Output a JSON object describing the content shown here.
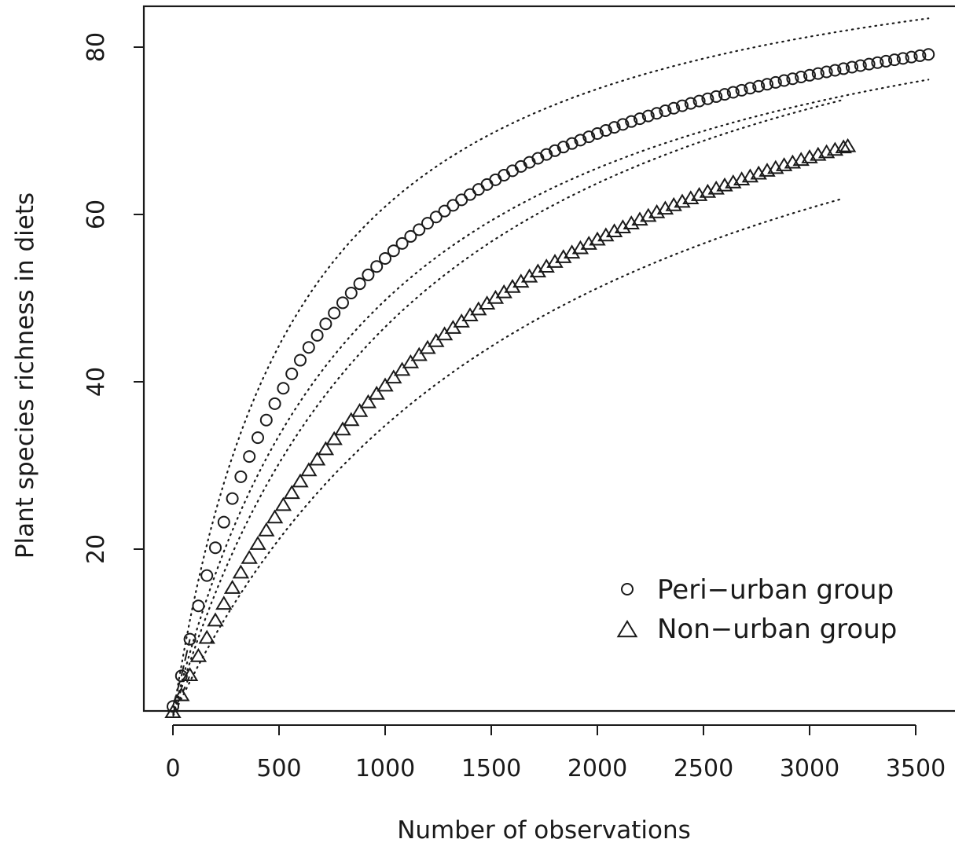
{
  "chart_data": {
    "type": "scatter",
    "title": "",
    "xlabel": "Number of observations",
    "ylabel": "Plant species richness in diets",
    "xlim": [
      -140,
      3700
    ],
    "ylim": [
      0,
      85
    ],
    "x_ticks": [
      0,
      500,
      1000,
      1500,
      2000,
      2500,
      3000,
      3500
    ],
    "x_tick_labels": [
      "0",
      "500",
      "1000",
      "1500",
      "2000",
      "2500",
      "3000",
      "3500"
    ],
    "y_ticks": [
      20,
      40,
      60,
      80
    ],
    "y_tick_labels": [
      "20",
      "40",
      "60",
      "80"
    ],
    "grid": false,
    "legend_position": "bottom-right",
    "series": [
      {
        "name": "Peri−urban group",
        "marker": "circle",
        "model": {
          "a": 95.8,
          "b": 750,
          "start": [
            0,
            1.2
          ]
        },
        "n_max": 3560,
        "step": 40,
        "ci_upper": {
          "a": 97.5,
          "b": 600,
          "n_max": 3560
        },
        "ci_lower": {
          "a": 96.0,
          "b": 930,
          "n_max": 3560
        }
      },
      {
        "name": "Non−urban group",
        "marker": "triangle",
        "model": {
          "a": 102.0,
          "b": 1580,
          "start": [
            0,
            0.5
          ]
        },
        "n_max": 3180,
        "step": 40,
        "ci_upper": {
          "a": 101.0,
          "b": 1170,
          "n_max": 3160
        },
        "ci_lower": {
          "a": 97.0,
          "b": 1790,
          "n_max": 3160
        }
      }
    ]
  }
}
